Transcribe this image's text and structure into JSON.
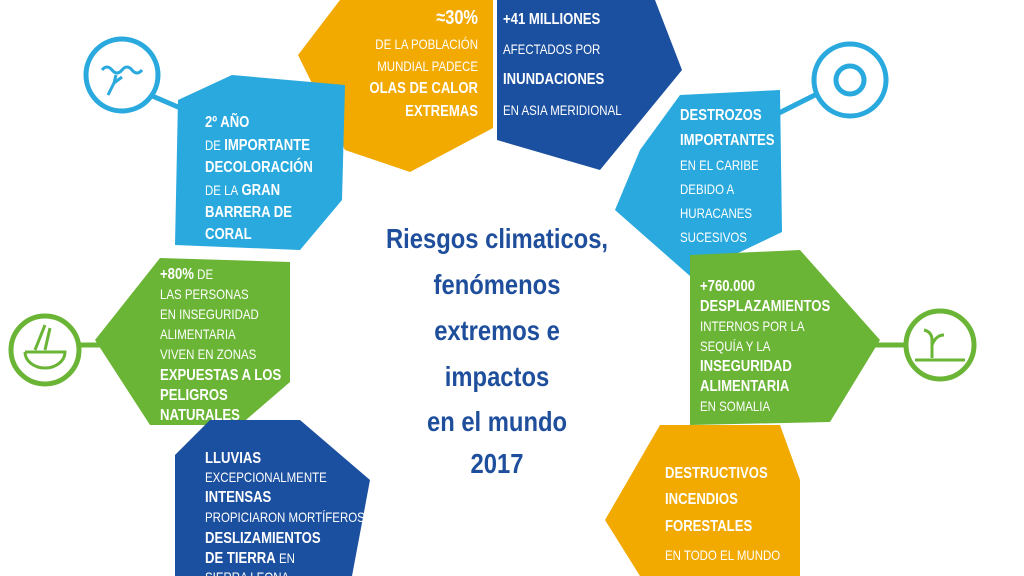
{
  "panels": [
    {
      "color": "#f2a900",
      "lines": [
        [
          {
            "text": "≈30%",
            "bold": true
          }
        ],
        [
          {
            "text": "DE LA POBLACIÓN",
            "bold": false
          }
        ],
        [
          {
            "text": "MUNDIAL PADECE",
            "bold": false
          }
        ],
        [
          {
            "text": "OLAS DE CALOR",
            "bold": true
          }
        ],
        [
          {
            "text": "EXTREMAS",
            "bold": true
          }
        ]
      ]
    },
    {
      "color": "#1b4f9f",
      "lines": [
        [
          {
            "text": "+41 MILLIONES",
            "bold": true
          }
        ],
        [
          {
            "text": "AFECTADOS POR",
            "bold": false
          }
        ],
        [
          {
            "text": "INUNDACIONES",
            "bold": true
          }
        ],
        [
          {
            "text": "EN ASIA MERIDIONAL",
            "bold": false
          }
        ]
      ]
    },
    {
      "color": "#29a9de",
      "lines": [
        [
          {
            "text": "2º AÑO",
            "bold": true
          }
        ],
        [
          {
            "text": "DE",
            "bold": false
          },
          {
            "text": "IMPORTANTE",
            "bold": true
          }
        ],
        [
          {
            "text": "DECOLORACIÓN",
            "bold": true
          }
        ],
        [
          {
            "text": "DE LA",
            "bold": false
          },
          {
            "text": "GRAN",
            "bold": true
          }
        ],
        [
          {
            "text": "BARRERA DE",
            "bold": true
          }
        ],
        [
          {
            "text": "CORAL",
            "bold": true
          }
        ]
      ]
    },
    {
      "color": "#29a9de",
      "lines": [
        [
          {
            "text": "DESTROZOS",
            "bold": true
          }
        ],
        [
          {
            "text": "IMPORTANTES",
            "bold": true
          }
        ],
        [
          {
            "text": "EN EL CARIBE",
            "bold": false
          }
        ],
        [
          {
            "text": "DEBIDO A",
            "bold": false
          }
        ],
        [
          {
            "text": "HURACANES",
            "bold": false
          }
        ],
        [
          {
            "text": "SUCESIVOS",
            "bold": false
          }
        ]
      ]
    },
    {
      "color": "#6bb536",
      "lines": [
        [
          {
            "text": "+80%",
            "bold": true
          },
          {
            "text": "DE",
            "bold": false
          }
        ],
        [
          {
            "text": "LAS PERSONAS",
            "bold": false
          }
        ],
        [
          {
            "text": "EN INSEGURIDAD",
            "bold": false
          }
        ],
        [
          {
            "text": "ALIMENTARIA",
            "bold": false
          }
        ],
        [
          {
            "text": "VIVEN EN ZONAS",
            "bold": false
          }
        ],
        [
          {
            "text": "EXPUESTAS A LOS",
            "bold": true
          }
        ],
        [
          {
            "text": "PELIGROS",
            "bold": true
          }
        ],
        [
          {
            "text": "NATURALES",
            "bold": true
          }
        ]
      ]
    },
    {
      "color": "#6bb536",
      "lines": [
        [
          {
            "text": "+760.000",
            "bold": true
          }
        ],
        [
          {
            "text": "DESPLAZAMIENTOS",
            "bold": true
          }
        ],
        [
          {
            "text": "INTERNOS POR LA",
            "bold": false
          }
        ],
        [
          {
            "text": "SEQUÍA Y LA",
            "bold": false
          }
        ],
        [
          {
            "text": "INSEGURIDAD",
            "bold": true
          }
        ],
        [
          {
            "text": "ALIMENTARIA",
            "bold": true
          }
        ],
        [
          {
            "text": "EN SOMALIA",
            "bold": false
          }
        ]
      ]
    },
    {
      "color": "#1b4f9f",
      "lines": [
        [
          {
            "text": "LLUVIAS",
            "bold": true
          }
        ],
        [
          {
            "text": "EXCEPCIONALMENTE",
            "bold": false
          }
        ],
        [
          {
            "text": "INTENSAS",
            "bold": true
          }
        ],
        [
          {
            "text": "PROPICIARON MORTÍFEROS",
            "bold": false
          }
        ],
        [
          {
            "text": "DESLIZAMIENTOS",
            "bold": true
          }
        ],
        [
          {
            "text": "DE TIERRA",
            "bold": true
          },
          {
            "text": "EN",
            "bold": false
          }
        ],
        [
          {
            "text": "SIERRA LEONA",
            "bold": false
          }
        ]
      ]
    },
    {
      "color": "#f2a900",
      "lines": [
        [
          {
            "text": "DESTRUCTIVOS",
            "bold": true
          }
        ],
        [
          {
            "text": "INCENDIOS",
            "bold": true
          }
        ],
        [
          {
            "text": "FORESTALES",
            "bold": true
          }
        ],
        [
          {
            "text": "EN TODO EL MUNDO",
            "bold": false
          }
        ]
      ]
    }
  ],
  "title": {
    "color": "#1f4f9c",
    "lines": [
      "Riesgos climaticos,",
      "fenómenos",
      "extremos e",
      "impactos",
      "en el mundo",
      "2017"
    ]
  }
}
